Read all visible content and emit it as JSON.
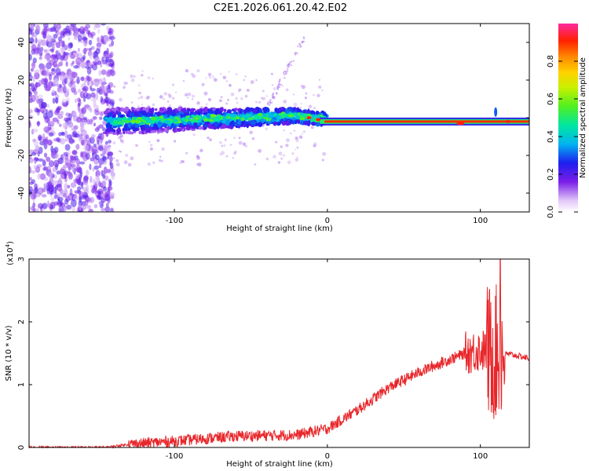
{
  "title": "C2E1.2026.061.20.42.E02",
  "chart_data": [
    {
      "type": "heatmap",
      "name": "spectrogram",
      "xlabel": "Height of straight line (km)",
      "ylabel": "Frequency (Hz)",
      "xlim": [
        -195,
        132
      ],
      "ylim": [
        -50,
        50
      ],
      "xticks": [
        -100,
        0,
        100
      ],
      "yticks": [
        -40,
        -20,
        0,
        20,
        40
      ],
      "ridge": [
        {
          "x": -140,
          "f": -2
        },
        {
          "x": -100,
          "f": -1
        },
        {
          "x": -60,
          "f": 0
        },
        {
          "x": -20,
          "f": 1
        },
        {
          "x": 0,
          "f": -1
        },
        {
          "x": 80,
          "f": -2
        },
        {
          "x": 132,
          "f": -2
        }
      ],
      "colorbar": {
        "label": "Normalized spectral amplitude",
        "min": 0,
        "max": 1,
        "ticks": [
          0.0,
          0.2,
          0.4,
          0.6,
          0.8
        ]
      }
    },
    {
      "type": "line",
      "name": "snr",
      "xlabel": "Height of straight line (km)",
      "ylabel": "SNR (10 * v/v)",
      "multiplier": "(x10",
      "multiplier_exp": "4",
      "multiplier_close": ")",
      "xlim": [
        -195,
        132
      ],
      "ylim": [
        0,
        3
      ],
      "xticks": [
        -100,
        0,
        100
      ],
      "yticks": [
        0,
        1,
        2,
        3
      ],
      "color": "#e8262a",
      "envelope": [
        {
          "x": -195,
          "y": 0.0
        },
        {
          "x": -145,
          "y": 0.0
        },
        {
          "x": -130,
          "y": 0.05
        },
        {
          "x": -100,
          "y": 0.1
        },
        {
          "x": -60,
          "y": 0.18
        },
        {
          "x": -20,
          "y": 0.2
        },
        {
          "x": 0,
          "y": 0.3
        },
        {
          "x": 20,
          "y": 0.6
        },
        {
          "x": 40,
          "y": 0.95
        },
        {
          "x": 60,
          "y": 1.2
        },
        {
          "x": 80,
          "y": 1.4
        },
        {
          "x": 90,
          "y": 1.5
        },
        {
          "x": 100,
          "y": 1.55
        },
        {
          "x": 110,
          "y": 1.5
        },
        {
          "x": 120,
          "y": 1.48
        },
        {
          "x": 132,
          "y": 1.42
        }
      ],
      "peak": {
        "x": 113,
        "y": 3.05
      }
    }
  ]
}
